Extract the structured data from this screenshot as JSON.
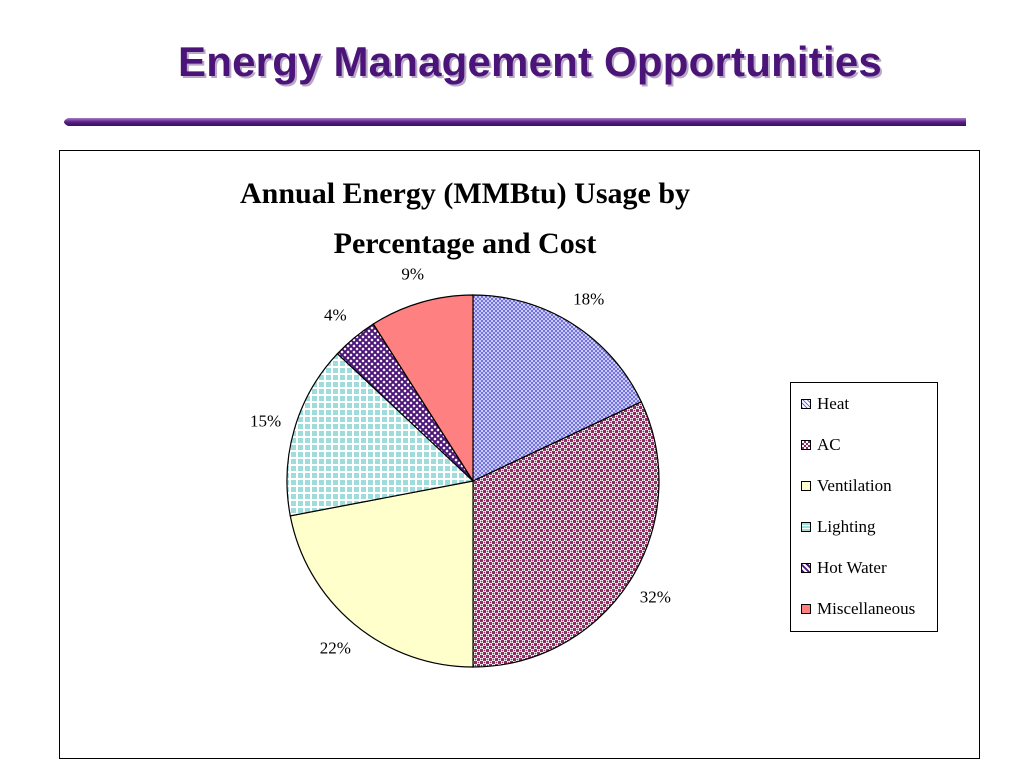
{
  "slide": {
    "title": "Energy Management Opportunities"
  },
  "colors": {
    "title": "#4B1478",
    "rule": "#5A1E86"
  },
  "chart_data": {
    "type": "pie",
    "title": [
      "Annual Energy (MMBtu) Usage by",
      "Percentage and Cost"
    ],
    "legend_position": "right",
    "slices": [
      {
        "name": "Heat",
        "value": 18,
        "label": "18%",
        "color": "#8E8EEA",
        "pattern": "crosshatch-fine"
      },
      {
        "name": "AC",
        "value": 32,
        "label": "32%",
        "color": "#9C3C6E",
        "pattern": "checker"
      },
      {
        "name": "Ventilation",
        "value": 22,
        "label": "22%",
        "color": "#FFFFCC",
        "pattern": "solid"
      },
      {
        "name": "Lighting",
        "value": 15,
        "label": "15%",
        "color": "#AEE4E4",
        "pattern": "grid"
      },
      {
        "name": "Hot Water",
        "value": 4,
        "label": "4%",
        "color": "#5A1E86",
        "pattern": "diagonal-check"
      },
      {
        "name": "Miscellaneous",
        "value": 9,
        "label": "9%",
        "color": "#FF8080",
        "pattern": "solid"
      }
    ]
  }
}
